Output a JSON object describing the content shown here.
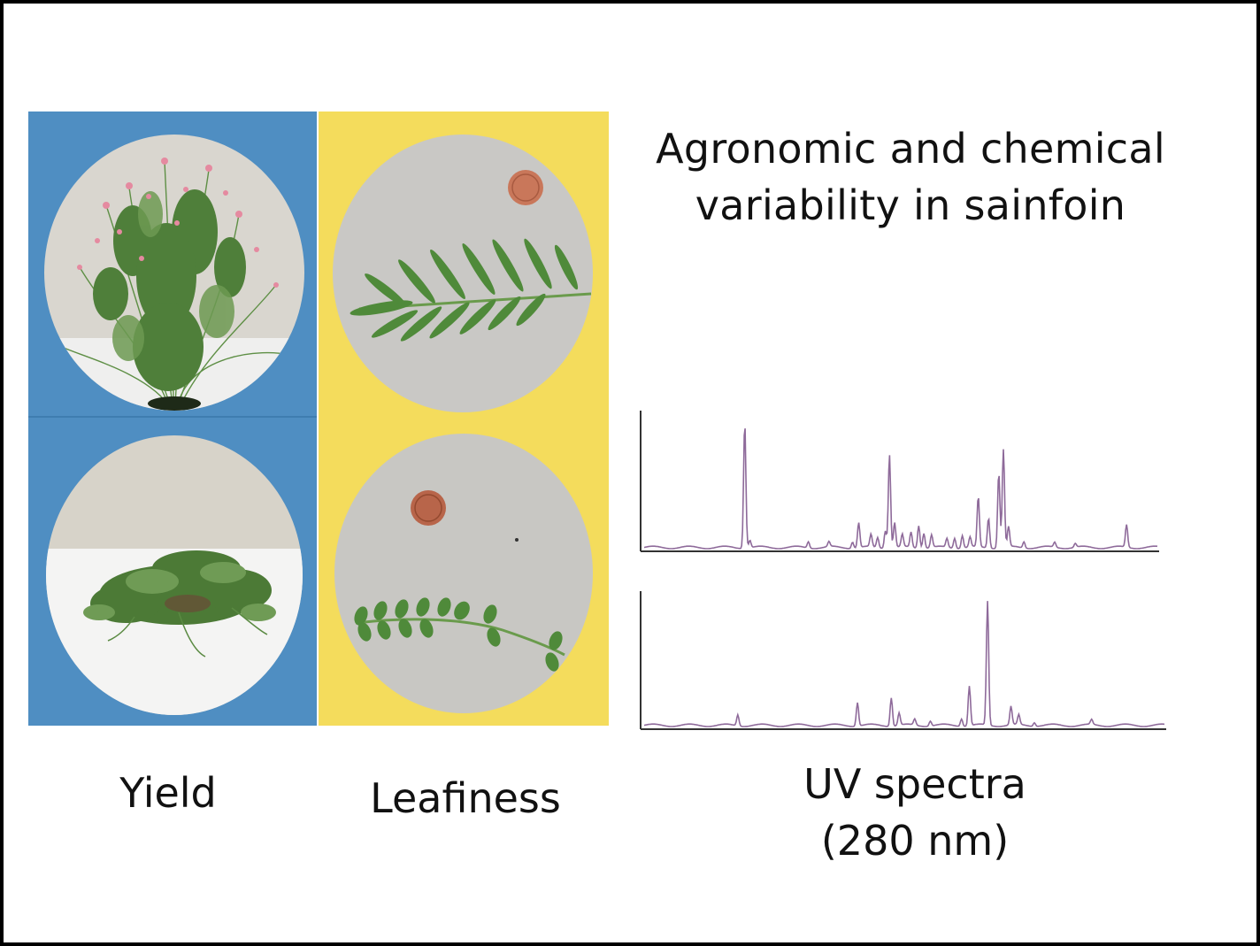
{
  "heading": "Agronomic and chemical\nvariability in sainfoin",
  "captions": {
    "yield": "Yield",
    "leafiness": "Leafiness",
    "uv": "UV spectra\n(280 nm)"
  },
  "colors": {
    "yield_panel": "#4f8ec2",
    "leafiness_panel": "#f4dc5c",
    "spectrum_line": "#8e6a9a",
    "axis": "#333333"
  },
  "photos": [
    {
      "name": "yield-plant-upright-photo",
      "subject": "tall upright sainfoin plant with pink flowers"
    },
    {
      "name": "yield-plant-prostrate-photo",
      "subject": "low spreading sainfoin plant"
    },
    {
      "name": "leafiness-leaf-narrow-photo",
      "subject": "compound leaf with long narrow leaflets beside a coin"
    },
    {
      "name": "leafiness-leaf-small-photo",
      "subject": "compound leaf with small oval leaflets beside a coin"
    }
  ],
  "spectra": [
    {
      "name": "spectrum-top",
      "peaks": [
        [
          0.196,
          1.0
        ],
        [
          0.206,
          0.06
        ],
        [
          0.32,
          0.05
        ],
        [
          0.36,
          0.04
        ],
        [
          0.406,
          0.05
        ],
        [
          0.418,
          0.2
        ],
        [
          0.442,
          0.1
        ],
        [
          0.455,
          0.08
        ],
        [
          0.47,
          0.14
        ],
        [
          0.478,
          0.75
        ],
        [
          0.488,
          0.2
        ],
        [
          0.503,
          0.1
        ],
        [
          0.52,
          0.12
        ],
        [
          0.535,
          0.18
        ],
        [
          0.545,
          0.12
        ],
        [
          0.56,
          0.1
        ],
        [
          0.59,
          0.07
        ],
        [
          0.605,
          0.08
        ],
        [
          0.62,
          0.1
        ],
        [
          0.635,
          0.08
        ],
        [
          0.651,
          0.4
        ],
        [
          0.671,
          0.24
        ],
        [
          0.691,
          0.6
        ],
        [
          0.7,
          0.78
        ],
        [
          0.71,
          0.16
        ],
        [
          0.74,
          0.05
        ],
        [
          0.8,
          0.04
        ],
        [
          0.84,
          0.03
        ],
        [
          0.94,
          0.18
        ]
      ]
    },
    {
      "name": "spectrum-bottom",
      "peaks": [
        [
          0.18,
          0.09
        ],
        [
          0.41,
          0.19
        ],
        [
          0.475,
          0.23
        ],
        [
          0.49,
          0.1
        ],
        [
          0.52,
          0.05
        ],
        [
          0.55,
          0.04
        ],
        [
          0.61,
          0.06
        ],
        [
          0.625,
          0.32
        ],
        [
          0.66,
          1.0
        ],
        [
          0.705,
          0.15
        ],
        [
          0.72,
          0.08
        ],
        [
          0.75,
          0.03
        ],
        [
          0.86,
          0.04
        ]
      ]
    }
  ]
}
